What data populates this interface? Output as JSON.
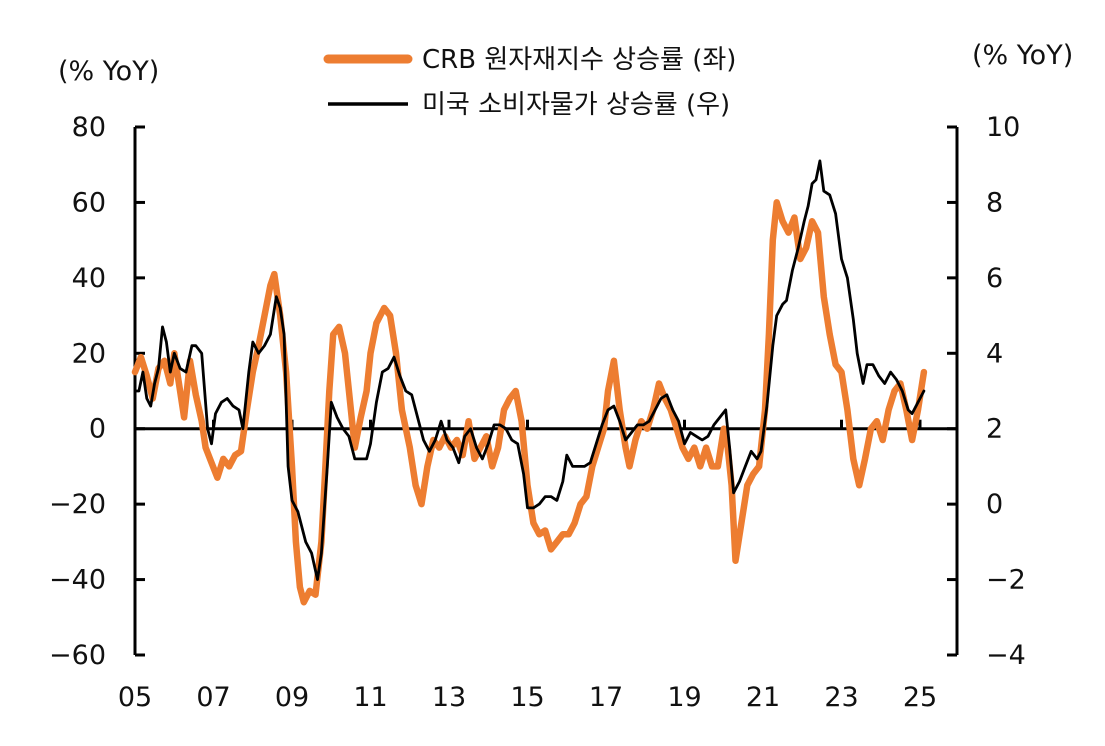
{
  "chart_data": {
    "type": "line",
    "left_unit": "(% YoY)",
    "right_unit": "(% YoY)",
    "x_range": [
      2005,
      2025.2
    ],
    "x_ticks": [
      {
        "value": 2005,
        "label": "05"
      },
      {
        "value": 2007,
        "label": "07"
      },
      {
        "value": 2009,
        "label": "09"
      },
      {
        "value": 2011,
        "label": "11"
      },
      {
        "value": 2013,
        "label": "13"
      },
      {
        "value": 2015,
        "label": "15"
      },
      {
        "value": 2017,
        "label": "17"
      },
      {
        "value": 2019,
        "label": "19"
      },
      {
        "value": 2021,
        "label": "21"
      },
      {
        "value": 2023,
        "label": "23"
      },
      {
        "value": 2025,
        "label": "25"
      }
    ],
    "left_axis": {
      "range": [
        -60,
        80
      ],
      "ticks": [
        "80",
        "60",
        "40",
        "20",
        "0",
        "−20",
        "−40",
        "−60"
      ],
      "tick_values": [
        80,
        60,
        40,
        20,
        0,
        -20,
        -40,
        -60
      ]
    },
    "right_axis": {
      "range": [
        -4,
        10
      ],
      "ticks": [
        "10",
        "8",
        "6",
        "4",
        "2",
        "0",
        "−2",
        "−4"
      ],
      "tick_values": [
        10,
        8,
        6,
        4,
        2,
        0,
        -2,
        -4
      ]
    },
    "zero_line_left_value": 0,
    "legend_position": "top-center",
    "series": [
      {
        "name": "CRB 원자재지수 상승률 (좌)",
        "axis": "left",
        "color": "#ED7D31",
        "points": [
          [
            2005.0,
            15
          ],
          [
            2005.15,
            19
          ],
          [
            2005.3,
            14
          ],
          [
            2005.45,
            8
          ],
          [
            2005.6,
            16
          ],
          [
            2005.75,
            18
          ],
          [
            2005.9,
            12
          ],
          [
            2006.0,
            20
          ],
          [
            2006.15,
            10
          ],
          [
            2006.25,
            3
          ],
          [
            2006.4,
            18
          ],
          [
            2006.55,
            9
          ],
          [
            2006.7,
            2
          ],
          [
            2006.8,
            -5
          ],
          [
            2006.95,
            -9
          ],
          [
            2007.1,
            -13
          ],
          [
            2007.25,
            -8
          ],
          [
            2007.4,
            -10
          ],
          [
            2007.55,
            -7
          ],
          [
            2007.7,
            -6
          ],
          [
            2007.85,
            5
          ],
          [
            2008.0,
            15
          ],
          [
            2008.15,
            22
          ],
          [
            2008.3,
            30
          ],
          [
            2008.45,
            38
          ],
          [
            2008.55,
            41
          ],
          [
            2008.7,
            30
          ],
          [
            2008.85,
            15
          ],
          [
            2009.0,
            -10
          ],
          [
            2009.1,
            -30
          ],
          [
            2009.2,
            -42
          ],
          [
            2009.3,
            -46
          ],
          [
            2009.45,
            -43
          ],
          [
            2009.6,
            -44
          ],
          [
            2009.75,
            -30
          ],
          [
            2009.85,
            -10
          ],
          [
            2009.95,
            10
          ],
          [
            2010.05,
            25
          ],
          [
            2010.2,
            27
          ],
          [
            2010.35,
            20
          ],
          [
            2010.5,
            5
          ],
          [
            2010.6,
            -5
          ],
          [
            2010.75,
            3
          ],
          [
            2010.9,
            10
          ],
          [
            2011.0,
            20
          ],
          [
            2011.15,
            28
          ],
          [
            2011.35,
            32
          ],
          [
            2011.5,
            30
          ],
          [
            2011.65,
            20
          ],
          [
            2011.8,
            5
          ],
          [
            2012.0,
            -5
          ],
          [
            2012.15,
            -15
          ],
          [
            2012.3,
            -20
          ],
          [
            2012.45,
            -10
          ],
          [
            2012.6,
            -3
          ],
          [
            2012.75,
            -5
          ],
          [
            2012.9,
            -2
          ],
          [
            2013.05,
            -5
          ],
          [
            2013.2,
            -3
          ],
          [
            2013.35,
            -7
          ],
          [
            2013.5,
            2
          ],
          [
            2013.65,
            -8
          ],
          [
            2013.8,
            -5
          ],
          [
            2013.95,
            -2
          ],
          [
            2014.1,
            -10
          ],
          [
            2014.25,
            -5
          ],
          [
            2014.4,
            5
          ],
          [
            2014.55,
            8
          ],
          [
            2014.7,
            10
          ],
          [
            2014.85,
            2
          ],
          [
            2015.0,
            -15
          ],
          [
            2015.15,
            -25
          ],
          [
            2015.3,
            -28
          ],
          [
            2015.45,
            -27
          ],
          [
            2015.6,
            -32
          ],
          [
            2015.75,
            -30
          ],
          [
            2015.9,
            -28
          ],
          [
            2016.05,
            -28
          ],
          [
            2016.2,
            -25
          ],
          [
            2016.35,
            -20
          ],
          [
            2016.5,
            -18
          ],
          [
            2016.65,
            -10
          ],
          [
            2016.8,
            -5
          ],
          [
            2016.95,
            0
          ],
          [
            2017.05,
            10
          ],
          [
            2017.2,
            18
          ],
          [
            2017.35,
            5
          ],
          [
            2017.5,
            -5
          ],
          [
            2017.6,
            -10
          ],
          [
            2017.75,
            -3
          ],
          [
            2017.9,
            2
          ],
          [
            2018.05,
            0
          ],
          [
            2018.2,
            5
          ],
          [
            2018.35,
            12
          ],
          [
            2018.5,
            8
          ],
          [
            2018.65,
            5
          ],
          [
            2018.8,
            0
          ],
          [
            2018.95,
            -5
          ],
          [
            2019.1,
            -8
          ],
          [
            2019.25,
            -5
          ],
          [
            2019.4,
            -10
          ],
          [
            2019.55,
            -5
          ],
          [
            2019.7,
            -10
          ],
          [
            2019.85,
            -10
          ],
          [
            2020.0,
            0
          ],
          [
            2020.1,
            -5
          ],
          [
            2020.2,
            -15
          ],
          [
            2020.3,
            -35
          ],
          [
            2020.45,
            -25
          ],
          [
            2020.6,
            -15
          ],
          [
            2020.75,
            -12
          ],
          [
            2020.9,
            -10
          ],
          [
            2021.05,
            5
          ],
          [
            2021.15,
            25
          ],
          [
            2021.25,
            50
          ],
          [
            2021.35,
            60
          ],
          [
            2021.5,
            55
          ],
          [
            2021.65,
            52
          ],
          [
            2021.8,
            56
          ],
          [
            2021.95,
            45
          ],
          [
            2022.1,
            48
          ],
          [
            2022.25,
            55
          ],
          [
            2022.4,
            52
          ],
          [
            2022.55,
            35
          ],
          [
            2022.7,
            25
          ],
          [
            2022.85,
            17
          ],
          [
            2023.0,
            15
          ],
          [
            2023.15,
            5
          ],
          [
            2023.3,
            -8
          ],
          [
            2023.45,
            -15
          ],
          [
            2023.6,
            -8
          ],
          [
            2023.75,
            0
          ],
          [
            2023.9,
            2
          ],
          [
            2024.05,
            -3
          ],
          [
            2024.2,
            5
          ],
          [
            2024.35,
            10
          ],
          [
            2024.5,
            12
          ],
          [
            2024.65,
            5
          ],
          [
            2024.8,
            -3
          ],
          [
            2024.95,
            5
          ],
          [
            2025.1,
            15
          ]
        ]
      },
      {
        "name": "미국 소비자물가 상승률 (우)",
        "axis": "right",
        "color": "#000000",
        "points": [
          [
            2005.0,
            3.0
          ],
          [
            2005.1,
            3.0
          ],
          [
            2005.2,
            3.5
          ],
          [
            2005.3,
            2.8
          ],
          [
            2005.4,
            2.6
          ],
          [
            2005.5,
            3.2
          ],
          [
            2005.6,
            3.6
          ],
          [
            2005.7,
            4.7
          ],
          [
            2005.8,
            4.3
          ],
          [
            2005.9,
            3.5
          ],
          [
            2006.0,
            4.0
          ],
          [
            2006.15,
            3.6
          ],
          [
            2006.3,
            3.5
          ],
          [
            2006.45,
            4.2
          ],
          [
            2006.55,
            4.2
          ],
          [
            2006.7,
            4.0
          ],
          [
            2006.85,
            2.0
          ],
          [
            2006.95,
            1.6
          ],
          [
            2007.05,
            2.4
          ],
          [
            2007.2,
            2.7
          ],
          [
            2007.35,
            2.8
          ],
          [
            2007.5,
            2.6
          ],
          [
            2007.65,
            2.5
          ],
          [
            2007.75,
            2.0
          ],
          [
            2007.9,
            3.5
          ],
          [
            2008.0,
            4.3
          ],
          [
            2008.15,
            4.0
          ],
          [
            2008.3,
            4.2
          ],
          [
            2008.45,
            4.5
          ],
          [
            2008.6,
            5.5
          ],
          [
            2008.7,
            5.2
          ],
          [
            2008.8,
            4.5
          ],
          [
            2008.9,
            1.0
          ],
          [
            2009.0,
            0.1
          ],
          [
            2009.15,
            -0.2
          ],
          [
            2009.35,
            -1.0
          ],
          [
            2009.5,
            -1.3
          ],
          [
            2009.65,
            -2.0
          ],
          [
            2009.75,
            -1.3
          ],
          [
            2009.9,
            1.0
          ],
          [
            2010.0,
            2.7
          ],
          [
            2010.15,
            2.3
          ],
          [
            2010.3,
            2.0
          ],
          [
            2010.45,
            1.8
          ],
          [
            2010.6,
            1.2
          ],
          [
            2010.75,
            1.2
          ],
          [
            2010.9,
            1.2
          ],
          [
            2011.0,
            1.6
          ],
          [
            2011.15,
            2.7
          ],
          [
            2011.3,
            3.5
          ],
          [
            2011.45,
            3.6
          ],
          [
            2011.6,
            3.9
          ],
          [
            2011.75,
            3.4
          ],
          [
            2011.9,
            3.0
          ],
          [
            2012.05,
            2.9
          ],
          [
            2012.2,
            2.3
          ],
          [
            2012.35,
            1.7
          ],
          [
            2012.5,
            1.4
          ],
          [
            2012.65,
            1.7
          ],
          [
            2012.8,
            2.2
          ],
          [
            2012.95,
            1.7
          ],
          [
            2013.1,
            1.5
          ],
          [
            2013.25,
            1.1
          ],
          [
            2013.4,
            1.8
          ],
          [
            2013.55,
            2.0
          ],
          [
            2013.7,
            1.5
          ],
          [
            2013.85,
            1.2
          ],
          [
            2014.0,
            1.6
          ],
          [
            2014.15,
            2.1
          ],
          [
            2014.3,
            2.1
          ],
          [
            2014.45,
            2.0
          ],
          [
            2014.6,
            1.7
          ],
          [
            2014.75,
            1.6
          ],
          [
            2014.9,
            0.8
          ],
          [
            2015.0,
            -0.1
          ],
          [
            2015.15,
            -0.1
          ],
          [
            2015.3,
            0.0
          ],
          [
            2015.45,
            0.2
          ],
          [
            2015.6,
            0.2
          ],
          [
            2015.75,
            0.1
          ],
          [
            2015.9,
            0.6
          ],
          [
            2016.0,
            1.3
          ],
          [
            2016.15,
            1.0
          ],
          [
            2016.3,
            1.0
          ],
          [
            2016.45,
            1.0
          ],
          [
            2016.6,
            1.1
          ],
          [
            2016.75,
            1.6
          ],
          [
            2016.9,
            2.1
          ],
          [
            2017.05,
            2.5
          ],
          [
            2017.2,
            2.6
          ],
          [
            2017.35,
            2.2
          ],
          [
            2017.5,
            1.7
          ],
          [
            2017.65,
            1.9
          ],
          [
            2017.8,
            2.1
          ],
          [
            2017.95,
            2.1
          ],
          [
            2018.1,
            2.2
          ],
          [
            2018.25,
            2.5
          ],
          [
            2018.4,
            2.8
          ],
          [
            2018.55,
            2.9
          ],
          [
            2018.7,
            2.5
          ],
          [
            2018.85,
            2.2
          ],
          [
            2019.0,
            1.6
          ],
          [
            2019.15,
            1.9
          ],
          [
            2019.3,
            1.8
          ],
          [
            2019.45,
            1.7
          ],
          [
            2019.6,
            1.8
          ],
          [
            2019.75,
            2.1
          ],
          [
            2019.9,
            2.3
          ],
          [
            2020.05,
            2.5
          ],
          [
            2020.15,
            1.5
          ],
          [
            2020.25,
            0.3
          ],
          [
            2020.4,
            0.6
          ],
          [
            2020.55,
            1.0
          ],
          [
            2020.7,
            1.4
          ],
          [
            2020.85,
            1.2
          ],
          [
            2020.95,
            1.4
          ],
          [
            2021.1,
            2.6
          ],
          [
            2021.25,
            4.2
          ],
          [
            2021.35,
            5.0
          ],
          [
            2021.5,
            5.3
          ],
          [
            2021.6,
            5.4
          ],
          [
            2021.75,
            6.2
          ],
          [
            2021.9,
            6.8
          ],
          [
            2022.05,
            7.5
          ],
          [
            2022.15,
            7.9
          ],
          [
            2022.25,
            8.5
          ],
          [
            2022.35,
            8.6
          ],
          [
            2022.45,
            9.1
          ],
          [
            2022.55,
            8.3
          ],
          [
            2022.7,
            8.2
          ],
          [
            2022.85,
            7.7
          ],
          [
            2023.0,
            6.5
          ],
          [
            2023.15,
            6.0
          ],
          [
            2023.3,
            4.9
          ],
          [
            2023.4,
            4.0
          ],
          [
            2023.55,
            3.2
          ],
          [
            2023.65,
            3.7
          ],
          [
            2023.8,
            3.7
          ],
          [
            2023.95,
            3.4
          ],
          [
            2024.1,
            3.2
          ],
          [
            2024.25,
            3.5
          ],
          [
            2024.4,
            3.3
          ],
          [
            2024.55,
            3.0
          ],
          [
            2024.7,
            2.5
          ],
          [
            2024.8,
            2.4
          ],
          [
            2024.95,
            2.7
          ],
          [
            2025.1,
            3.0
          ]
        ]
      }
    ]
  }
}
